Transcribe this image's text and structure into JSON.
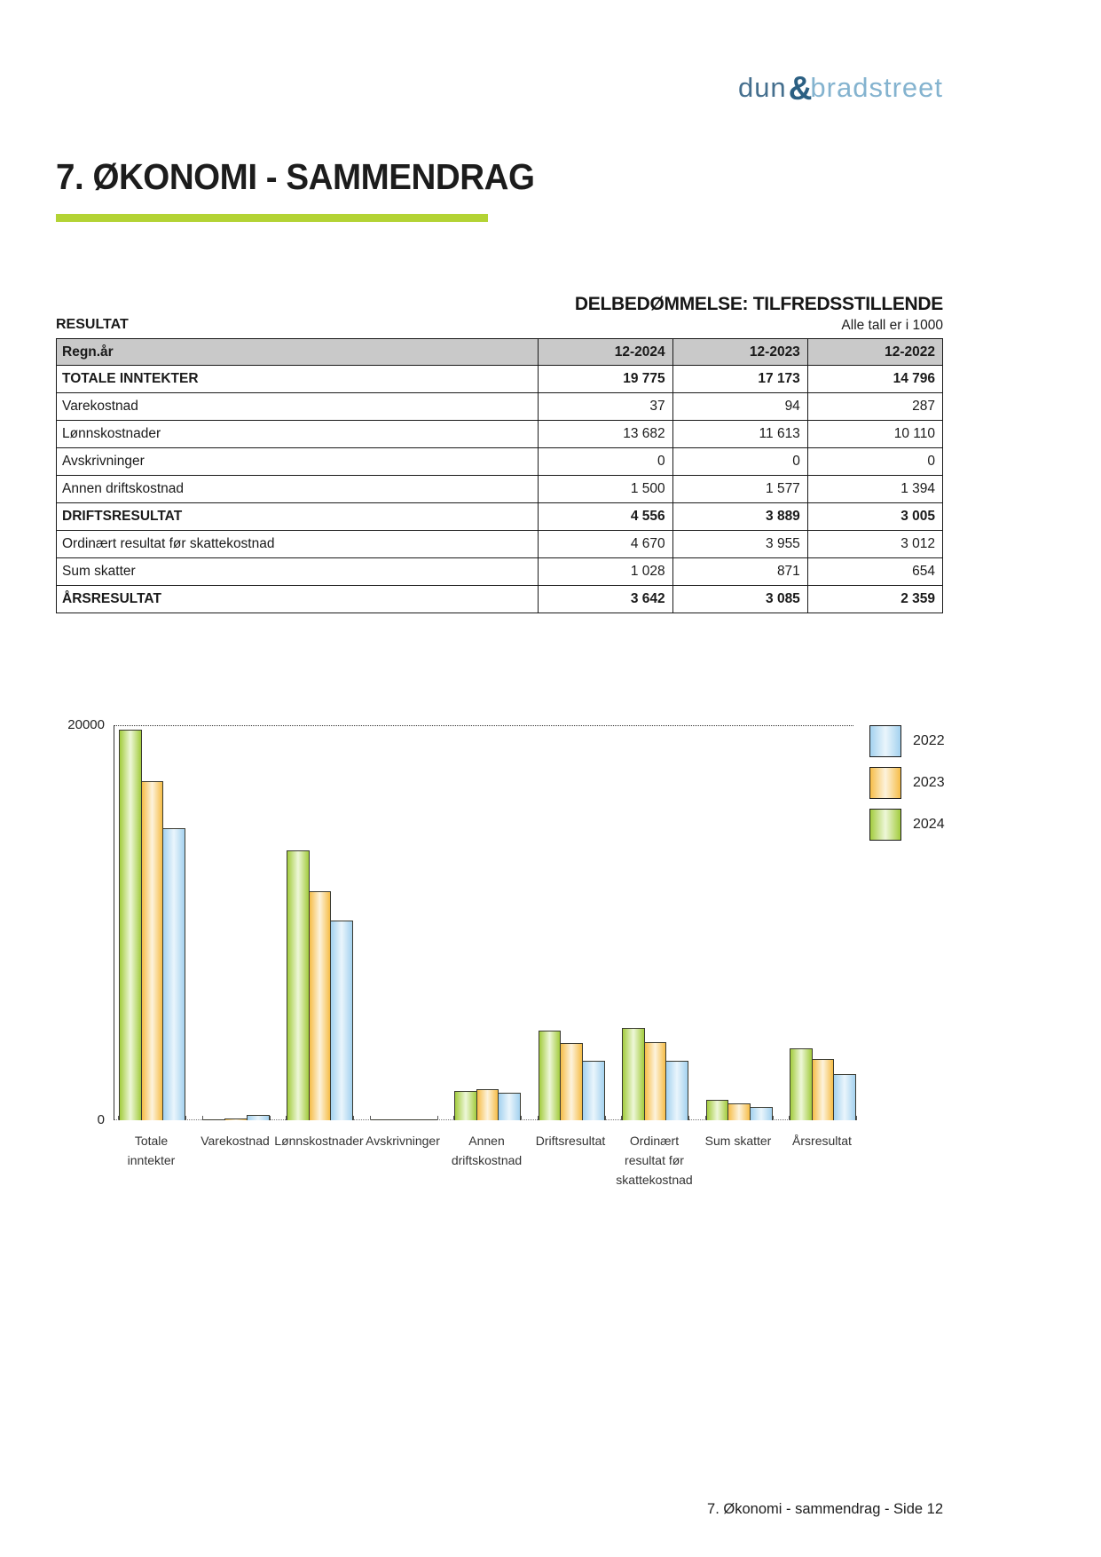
{
  "brand": {
    "dun": "dun",
    "ampersand": "&",
    "bradstreet": "bradstreet"
  },
  "title": "7. ØKONOMI - SAMMENDRAG",
  "assessment_heading": "DELBEDØMMELSE: TILFREDSSTILLENDE",
  "table_section": {
    "label": "RESULTAT",
    "units_note": "Alle tall er i 1000"
  },
  "table": {
    "headers": [
      "Regn.år",
      "12-2024",
      "12-2023",
      "12-2022"
    ],
    "rows": [
      {
        "label": "TOTALE INNTEKTER",
        "values": [
          "19 775",
          "17 173",
          "14 796"
        ],
        "bold": true
      },
      {
        "label": "Varekostnad",
        "values": [
          "37",
          "94",
          "287"
        ],
        "bold": false
      },
      {
        "label": "Lønnskostnader",
        "values": [
          "13 682",
          "11 613",
          "10 110"
        ],
        "bold": false
      },
      {
        "label": "Avskrivninger",
        "values": [
          "0",
          "0",
          "0"
        ],
        "bold": false
      },
      {
        "label": "Annen driftskostnad",
        "values": [
          "1 500",
          "1 577",
          "1 394"
        ],
        "bold": false
      },
      {
        "label": "DRIFTSRESULTAT",
        "values": [
          "4 556",
          "3 889",
          "3 005"
        ],
        "bold": true
      },
      {
        "label": "Ordinært resultat før skattekostnad",
        "values": [
          "4 670",
          "3 955",
          "3 012"
        ],
        "bold": false
      },
      {
        "label": "Sum skatter",
        "values": [
          "1 028",
          "871",
          "654"
        ],
        "bold": false
      },
      {
        "label": "ÅRSRESULTAT",
        "values": [
          "3 642",
          "3 085",
          "2 359"
        ],
        "bold": true
      }
    ]
  },
  "chart_data": {
    "type": "bar",
    "title": "",
    "xlabel": "",
    "ylabel": "",
    "values_unit": "1000 NOK",
    "categories": [
      "Totale inntekter",
      "Varekostnad",
      "Lønnskostnader",
      "Avskrivninger",
      "Annen driftskostnad",
      "Driftsresultat",
      "Ordinært resultat før skattekostnad",
      "Sum skatter",
      "Årsresultat"
    ],
    "category_display": [
      "Totale\ninntekter",
      "Varekostnad",
      "Lønnskostnader",
      "Avskrivninger",
      "Annen\ndriftskostnad",
      "Driftsresultat",
      "Ordinært\nresultat før\nskattekostnad",
      "Sum skatter",
      "Årsresultat"
    ],
    "series": [
      {
        "name": "2024",
        "color": "#a3cc3e",
        "color_light": "#eef7d9",
        "values": [
          19775,
          37,
          13682,
          0,
          1500,
          4556,
          4670,
          1028,
          3642
        ]
      },
      {
        "name": "2023",
        "color": "#f6bd48",
        "color_light": "#fdf3dd",
        "values": [
          17173,
          94,
          11613,
          0,
          1577,
          3889,
          3955,
          871,
          3085
        ]
      },
      {
        "name": "2022",
        "color": "#a4d2ef",
        "color_light": "#eaf5fc",
        "values": [
          14796,
          287,
          10110,
          0,
          1394,
          3005,
          3012,
          654,
          2359
        ]
      }
    ],
    "legend_order": [
      "2022",
      "2023",
      "2024"
    ],
    "legend_position": "top-right",
    "ylim": [
      0,
      20000
    ],
    "ytick_labels": [
      "20000",
      "0"
    ],
    "gridline_at": 20000,
    "gridline_style": "dotted",
    "grid": "single dotted line at y max only"
  },
  "footer": {
    "text": "7. Økonomi - sammendrag - Side 12"
  },
  "colors": {
    "accent_green": "#b3d334",
    "header_gray": "#c9c9c9",
    "logo_dun": "#456f8e",
    "logo_amp": "#2b5f82",
    "logo_bradstreet": "#84b3cf"
  }
}
